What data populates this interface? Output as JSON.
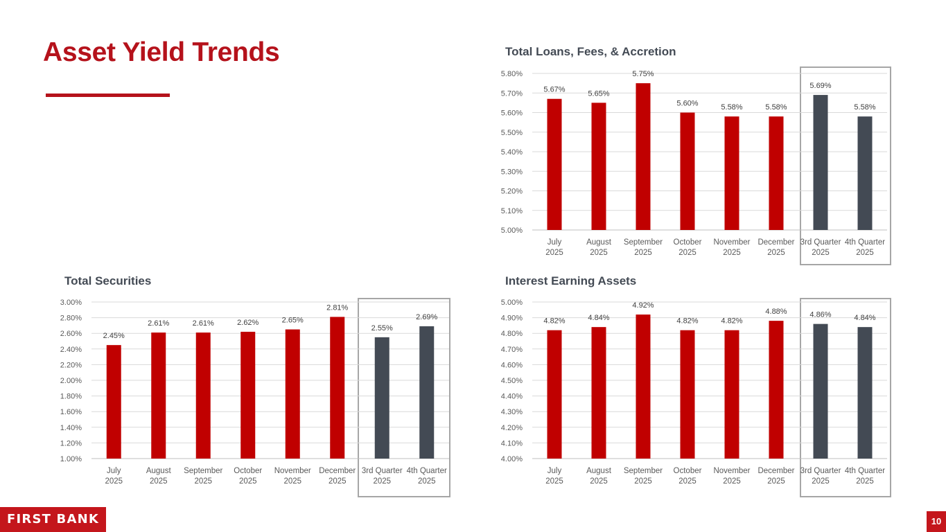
{
  "page": {
    "title": "Asset Yield Trends",
    "page_number": "10",
    "logo_text": "FIRST BANK",
    "colors": {
      "accent": "#b5121b",
      "month_bar": "#c00000",
      "quarter_bar": "#434a54",
      "highlight": "#a6a6a6"
    }
  },
  "chart_data": [
    {
      "id": "loans",
      "type": "bar",
      "title": "Total Loans, Fees, & Accretion",
      "categories": [
        [
          "July",
          "2025"
        ],
        [
          "August",
          "2025"
        ],
        [
          "September",
          "2025"
        ],
        [
          "October",
          "2025"
        ],
        [
          "November",
          "2025"
        ],
        [
          "December",
          "2025"
        ],
        [
          "3rd Quarter",
          "2025"
        ],
        [
          "4th Quarter",
          "2025"
        ]
      ],
      "values": [
        5.67,
        5.65,
        5.75,
        5.6,
        5.58,
        5.58,
        5.69,
        5.58
      ],
      "labels": [
        "5.67%",
        "5.65%",
        "5.75%",
        "5.60%",
        "5.58%",
        "5.58%",
        "5.69%",
        "5.58%"
      ],
      "ylim": [
        5.0,
        5.8
      ],
      "yticks": [
        "5.00%",
        "5.10%",
        "5.20%",
        "5.30%",
        "5.40%",
        "5.50%",
        "5.60%",
        "5.70%",
        "5.80%"
      ],
      "grid": true,
      "highlighted_categories": [
        "3rd Quarter 2025",
        "4th Quarter 2025"
      ]
    },
    {
      "id": "securities",
      "type": "bar",
      "title": "Total Securities",
      "categories": [
        [
          "July",
          "2025"
        ],
        [
          "August",
          "2025"
        ],
        [
          "September",
          "2025"
        ],
        [
          "October",
          "2025"
        ],
        [
          "November",
          "2025"
        ],
        [
          "December",
          "2025"
        ],
        [
          "3rd Quarter",
          "2025"
        ],
        [
          "4th Quarter",
          "2025"
        ]
      ],
      "values": [
        2.45,
        2.61,
        2.61,
        2.62,
        2.65,
        2.81,
        2.55,
        2.69
      ],
      "labels": [
        "2.45%",
        "2.61%",
        "2.61%",
        "2.62%",
        "2.65%",
        "2.81%",
        "2.55%",
        "2.69%"
      ],
      "ylim": [
        1.0,
        3.0
      ],
      "yticks": [
        "1.00%",
        "1.20%",
        "1.40%",
        "1.60%",
        "1.80%",
        "2.00%",
        "2.20%",
        "2.40%",
        "2.60%",
        "2.80%",
        "3.00%"
      ],
      "grid": true,
      "highlighted_categories": [
        "3rd Quarter 2025",
        "4th Quarter 2025"
      ]
    },
    {
      "id": "iea",
      "type": "bar",
      "title": "Interest Earning Assets",
      "categories": [
        [
          "July",
          "2025"
        ],
        [
          "August",
          "2025"
        ],
        [
          "September",
          "2025"
        ],
        [
          "October",
          "2025"
        ],
        [
          "November",
          "2025"
        ],
        [
          "December",
          "2025"
        ],
        [
          "3rd Quarter",
          "2025"
        ],
        [
          "4th Quarter",
          "2025"
        ]
      ],
      "values": [
        4.82,
        4.84,
        4.92,
        4.82,
        4.82,
        4.88,
        4.86,
        4.84
      ],
      "labels": [
        "4.82%",
        "4.84%",
        "4.92%",
        "4.82%",
        "4.82%",
        "4.88%",
        "4.86%",
        "4.84%"
      ],
      "ylim": [
        4.0,
        5.0
      ],
      "yticks": [
        "4.00%",
        "4.10%",
        "4.20%",
        "4.30%",
        "4.40%",
        "4.50%",
        "4.60%",
        "4.70%",
        "4.80%",
        "4.90%",
        "5.00%"
      ],
      "grid": true,
      "highlighted_categories": [
        "3rd Quarter 2025",
        "4th Quarter 2025"
      ]
    }
  ]
}
